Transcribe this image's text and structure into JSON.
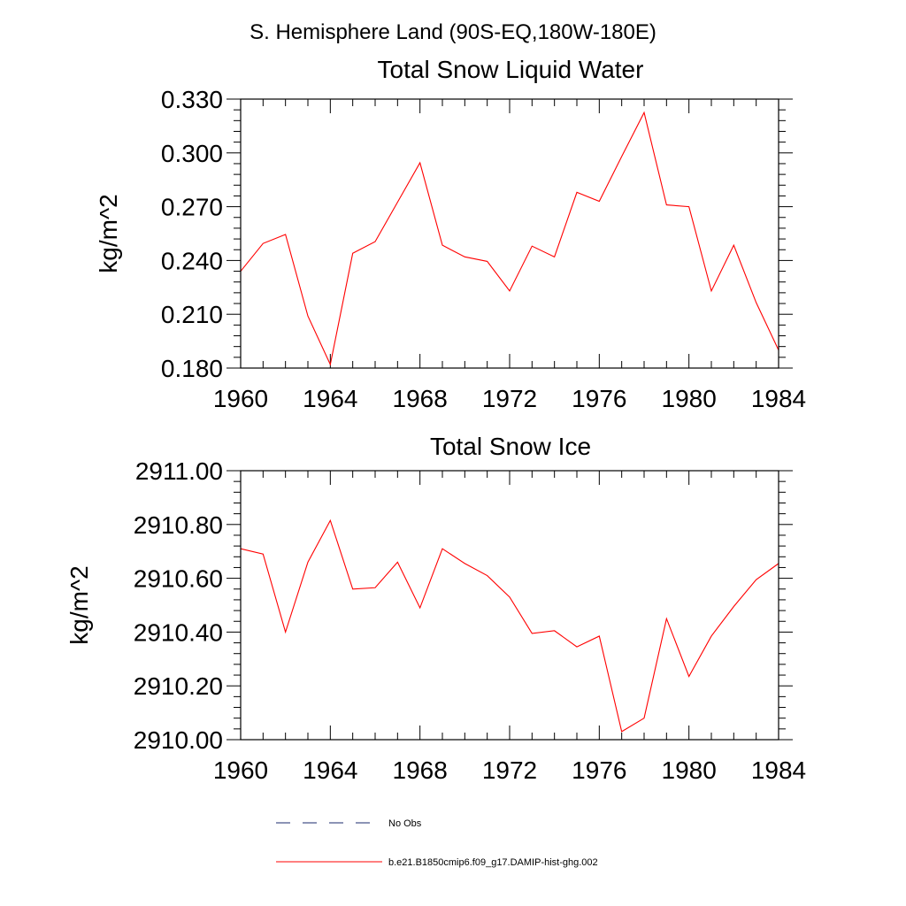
{
  "figure": {
    "title": "S. Hemisphere Land (90S-EQ,180W-180E)"
  },
  "chart_data": [
    {
      "type": "line",
      "title": "Total Snow Liquid Water",
      "xlabel": "",
      "ylabel": "kg/m^2",
      "xlim": [
        1960,
        1984
      ],
      "ylim": [
        0.18,
        0.33
      ],
      "x_ticks": [
        "1960",
        "1964",
        "1968",
        "1972",
        "1976",
        "1980",
        "1984"
      ],
      "y_ticks": [
        "0.180",
        "0.210",
        "0.240",
        "0.270",
        "0.300",
        "0.330"
      ],
      "x": [
        1960,
        1961,
        1962,
        1963,
        1964,
        1965,
        1966,
        1967,
        1968,
        1969,
        1970,
        1971,
        1972,
        1973,
        1974,
        1975,
        1976,
        1977,
        1978,
        1979,
        1980,
        1981,
        1982,
        1983,
        1984
      ],
      "series": [
        {
          "name": "b.e21.B1850cmip6.f09_g17.DAMIP-hist-ghg.002",
          "color": "#ff0000",
          "values": [
            0.234,
            0.2495,
            0.2545,
            0.209,
            0.182,
            0.244,
            0.2505,
            0.2725,
            0.2945,
            0.2485,
            0.242,
            0.2395,
            0.223,
            0.248,
            0.242,
            0.278,
            0.273,
            0.298,
            0.3225,
            0.271,
            0.27,
            0.223,
            0.2485,
            0.2165,
            0.19
          ]
        }
      ]
    },
    {
      "type": "line",
      "title": "Total Snow Ice",
      "xlabel": "",
      "ylabel": "kg/m^2",
      "xlim": [
        1960,
        1984
      ],
      "ylim": [
        2910.0,
        2911.0
      ],
      "x_ticks": [
        "1960",
        "1964",
        "1968",
        "1972",
        "1976",
        "1980",
        "1984"
      ],
      "y_ticks": [
        "2910.00",
        "2910.20",
        "2910.40",
        "2910.60",
        "2910.80",
        "2911.00"
      ],
      "x": [
        1960,
        1961,
        1962,
        1963,
        1964,
        1965,
        1966,
        1967,
        1968,
        1969,
        1970,
        1971,
        1972,
        1973,
        1974,
        1975,
        1976,
        1977,
        1978,
        1979,
        1980,
        1981,
        1982,
        1983,
        1984
      ],
      "series": [
        {
          "name": "b.e21.B1850cmip6.f09_g17.DAMIP-hist-ghg.002",
          "color": "#ff0000",
          "values": [
            2910.71,
            2910.69,
            2910.4,
            2910.66,
            2910.815,
            2910.56,
            2910.565,
            2910.66,
            2910.49,
            2910.71,
            2910.655,
            2910.61,
            2910.53,
            2910.395,
            2910.405,
            2910.345,
            2910.385,
            2910.03,
            2910.08,
            2910.45,
            2910.235,
            2910.385,
            2910.495,
            2910.595,
            2910.655
          ]
        }
      ]
    }
  ],
  "legend": {
    "items": [
      {
        "label": "No Obs",
        "color": "#1a2a6c",
        "style": "dashed"
      },
      {
        "label": "b.e21.B1850cmip6.f09_g17.DAMIP-hist-ghg.002",
        "color": "#ff0000",
        "style": "solid"
      }
    ]
  }
}
